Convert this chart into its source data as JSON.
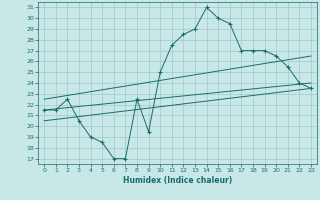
{
  "title": "",
  "xlabel": "Humidex (Indice chaleur)",
  "background_color": "#c8e8e8",
  "line_color": "#1a6b6b",
  "grid_color": "#a0c8c8",
  "xlim": [
    -0.5,
    23.5
  ],
  "ylim": [
    16.5,
    31.5
  ],
  "xticks": [
    0,
    1,
    2,
    3,
    4,
    5,
    6,
    7,
    8,
    9,
    10,
    11,
    12,
    13,
    14,
    15,
    16,
    17,
    18,
    19,
    20,
    21,
    22,
    23
  ],
  "yticks": [
    17,
    18,
    19,
    20,
    21,
    22,
    23,
    24,
    25,
    26,
    27,
    28,
    29,
    30,
    31
  ],
  "main_x": [
    0,
    1,
    2,
    3,
    4,
    5,
    6,
    7,
    8,
    9,
    10,
    11,
    12,
    13,
    14,
    15,
    16,
    17,
    18,
    19,
    20,
    21,
    22,
    23
  ],
  "main_y": [
    21.5,
    21.5,
    22.5,
    20.5,
    19.0,
    18.5,
    17.0,
    17.0,
    22.5,
    19.5,
    25.0,
    27.5,
    28.5,
    29.0,
    31.0,
    30.0,
    29.5,
    27.0,
    27.0,
    27.0,
    26.5,
    25.5,
    24.0,
    23.5
  ],
  "trend1_x": [
    0,
    23
  ],
  "trend1_y": [
    21.5,
    24.0
  ],
  "trend2_x": [
    0,
    23
  ],
  "trend2_y": [
    22.5,
    26.5
  ],
  "trend3_x": [
    0,
    23
  ],
  "trend3_y": [
    20.5,
    23.5
  ]
}
